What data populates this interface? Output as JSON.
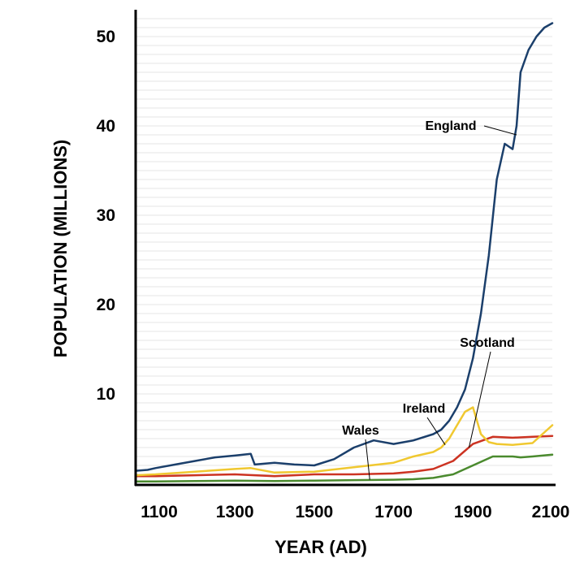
{
  "chart_data": {
    "type": "line",
    "title": "",
    "xlabel": "YEAR (AD)",
    "ylabel": "POPULATION  (MILLIONS)",
    "xlim": [
      1050,
      2100
    ],
    "ylim": [
      0,
      53
    ],
    "x_ticks": [
      1100,
      1300,
      1500,
      1700,
      1900,
      2100
    ],
    "y_ticks": [
      10,
      20,
      30,
      40,
      50
    ],
    "grid": true,
    "series": [
      {
        "name": "England",
        "color": "#1b3f6b",
        "x": [
          1050,
          1080,
          1100,
          1150,
          1200,
          1250,
          1300,
          1340,
          1350,
          1400,
          1450,
          1500,
          1550,
          1600,
          1650,
          1700,
          1750,
          1800,
          1820,
          1840,
          1860,
          1880,
          1900,
          1920,
          1940,
          1960,
          1980,
          2000,
          2010,
          2020,
          2040,
          2060,
          2080,
          2100
        ],
        "y": [
          1.4,
          1.5,
          1.7,
          2.1,
          2.5,
          2.9,
          3.1,
          3.3,
          2.1,
          2.3,
          2.1,
          2.0,
          2.7,
          4.0,
          4.8,
          4.4,
          4.8,
          5.5,
          6.0,
          7.0,
          8.5,
          10.5,
          14.0,
          19.0,
          25.5,
          34.0,
          38.0,
          37.4,
          40.0,
          46.0,
          48.5,
          50.0,
          51.0,
          51.5
        ]
      },
      {
        "name": "Scotland",
        "color": "#cc3322",
        "x": [
          1050,
          1100,
          1200,
          1300,
          1400,
          1500,
          1600,
          1700,
          1750,
          1800,
          1850,
          1900,
          1950,
          2000,
          2050,
          2100
        ],
        "y": [
          0.8,
          0.8,
          0.9,
          1.0,
          0.8,
          1.0,
          1.0,
          1.1,
          1.3,
          1.6,
          2.5,
          4.4,
          5.2,
          5.1,
          5.2,
          5.3
        ]
      },
      {
        "name": "Ireland",
        "color": "#f0c830",
        "x": [
          1050,
          1100,
          1200,
          1300,
          1340,
          1400,
          1500,
          1600,
          1700,
          1750,
          1800,
          1820,
          1840,
          1860,
          1880,
          1900,
          1920,
          1940,
          1960,
          2000,
          2050,
          2100
        ],
        "y": [
          0.9,
          1.0,
          1.3,
          1.6,
          1.7,
          1.2,
          1.3,
          1.8,
          2.3,
          3.0,
          3.5,
          4.0,
          5.0,
          6.5,
          8.0,
          8.5,
          5.5,
          4.6,
          4.4,
          4.3,
          4.5,
          6.5
        ]
      },
      {
        "name": "Wales",
        "color": "#4a8a2e",
        "x": [
          1050,
          1100,
          1200,
          1300,
          1400,
          1500,
          1600,
          1700,
          1750,
          1800,
          1850,
          1900,
          1950,
          2000,
          2020,
          2050,
          2100
        ],
        "y": [
          0.2,
          0.2,
          0.25,
          0.3,
          0.25,
          0.3,
          0.35,
          0.4,
          0.45,
          0.6,
          1.0,
          2.0,
          3.0,
          3.0,
          2.9,
          3.0,
          3.2
        ]
      }
    ],
    "annotations": [
      {
        "text": "England",
        "series": "England",
        "points_to": [
          2010,
          39.0
        ]
      },
      {
        "text": "Scotland",
        "series": "Scotland",
        "points_to": [
          1890,
          4.0
        ]
      },
      {
        "text": "Ireland",
        "series": "Ireland",
        "points_to": [
          1830,
          4.3
        ]
      },
      {
        "text": "Wales",
        "series": "Wales",
        "points_to": [
          1640,
          0.4
        ]
      }
    ]
  }
}
